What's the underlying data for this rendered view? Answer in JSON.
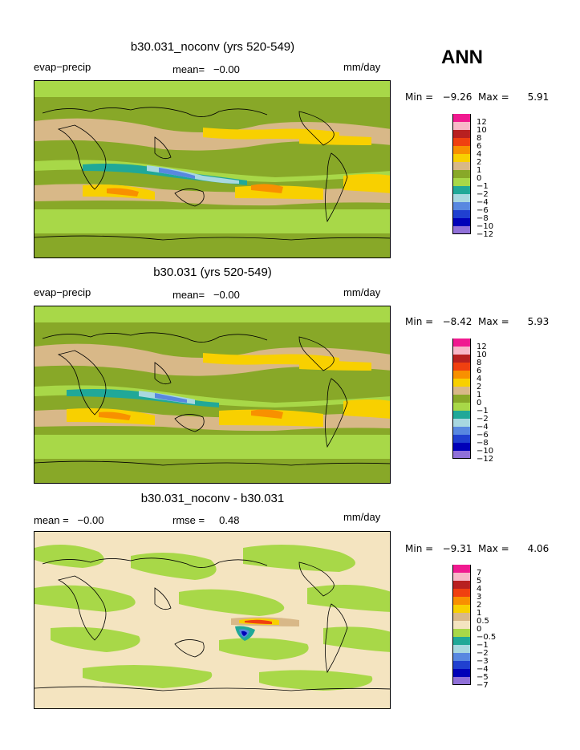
{
  "season": "ANN",
  "panels": [
    {
      "title": "b30.031_noconv (yrs 520-549)",
      "left_label": "evap−precip",
      "center_label": "mean=   −0.00",
      "right_label": "mm/day",
      "min_max": "Min =   −9.26  Max =      5.91",
      "colorbar_labels": [
        "12",
        "10",
        "8",
        "6",
        "4",
        "2",
        "1",
        "0",
        "−1",
        "−2",
        "−4",
        "−6",
        "−8",
        "−10",
        "−12"
      ]
    },
    {
      "title": "b30.031 (yrs 520-549)",
      "left_label": "evap−precip",
      "center_label": "mean=   −0.00",
      "right_label": "mm/day",
      "min_max": "Min =   −8.42  Max =      5.93",
      "colorbar_labels": [
        "12",
        "10",
        "8",
        "6",
        "4",
        "2",
        "1",
        "0",
        "−1",
        "−2",
        "−4",
        "−6",
        "−8",
        "−10",
        "−12"
      ]
    },
    {
      "title": "b30.031_noconv - b30.031",
      "left_label": "mean =   −0.00",
      "center_label": "rmse =     0.48",
      "right_label": "mm/day",
      "min_max": "Min =   −9.31  Max =      4.06",
      "colorbar_labels": [
        "7",
        "5",
        "4",
        "3",
        "2",
        "1",
        "0.5",
        "0",
        "−0.5",
        "−1",
        "−2",
        "−3",
        "−4",
        "−5",
        "−7"
      ]
    }
  ],
  "colors": {
    "scale": [
      "#f01a90",
      "#f8b8c8",
      "#b82020",
      "#f04010",
      "#f89000",
      "#f8d000",
      "#d8b888",
      "#88a828",
      "#a8d848",
      "#20a898",
      "#a8d8e0",
      "#5888e0",
      "#2040d0",
      "#0000b8",
      "#9070d8"
    ],
    "land_outline": "#000000",
    "diff_base": "#f4e4c0"
  },
  "chart_data": [
    {
      "type": "heatmap",
      "title": "b30.031_noconv (yrs 520-549)",
      "variable": "evap−precip",
      "units": "mm/day",
      "mean": -0.0,
      "min": -9.26,
      "max": 5.91,
      "levels": [
        -12,
        -10,
        -8,
        -6,
        -4,
        -2,
        -1,
        0,
        1,
        2,
        4,
        6,
        8,
        10,
        12
      ]
    },
    {
      "type": "heatmap",
      "title": "b30.031 (yrs 520-549)",
      "variable": "evap−precip",
      "units": "mm/day",
      "mean": -0.0,
      "min": -8.42,
      "max": 5.93,
      "levels": [
        -12,
        -10,
        -8,
        -6,
        -4,
        -2,
        -1,
        0,
        1,
        2,
        4,
        6,
        8,
        10,
        12
      ]
    },
    {
      "type": "heatmap",
      "title": "b30.031_noconv - b30.031",
      "units": "mm/day",
      "mean": -0.0,
      "rmse": 0.48,
      "min": -9.31,
      "max": 4.06,
      "levels": [
        -7,
        -5,
        -4,
        -3,
        -2,
        -1,
        -0.5,
        0,
        0.5,
        1,
        2,
        3,
        4,
        5,
        7
      ]
    }
  ]
}
